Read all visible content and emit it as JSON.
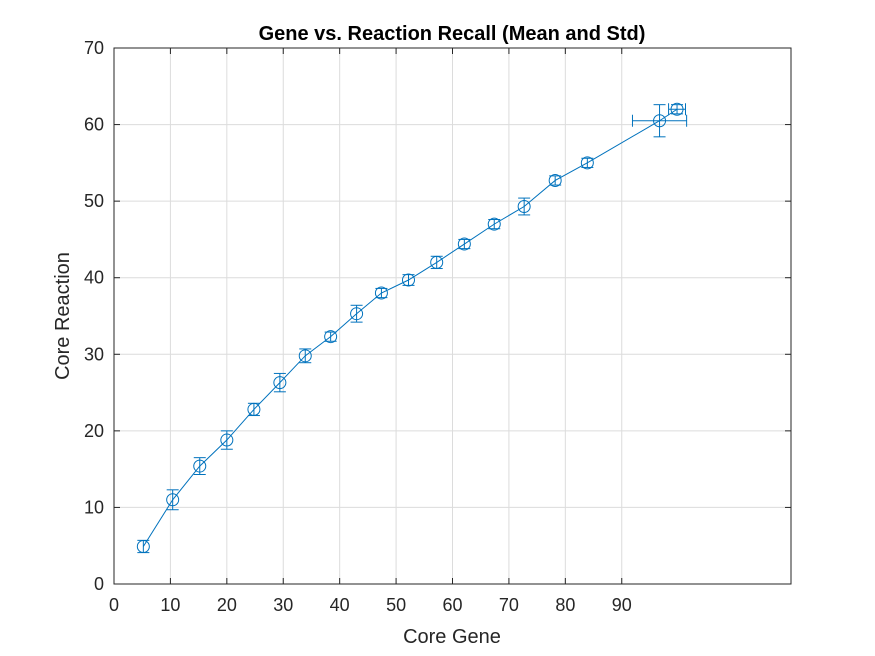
{
  "chart_data": {
    "type": "line",
    "title": "Gene vs. Reaction Recall (Mean and Std)",
    "xlabel": "Core Gene",
    "ylabel": "Core Reaction",
    "xlim": [
      0,
      120
    ],
    "ylim": [
      0,
      70
    ],
    "xticks": [
      0,
      10,
      20,
      30,
      40,
      50,
      60,
      70,
      80,
      90
    ],
    "yticks": [
      0,
      10,
      20,
      30,
      40,
      50,
      60,
      70
    ],
    "grid": true,
    "series": [
      {
        "marker": "circle",
        "color": "#0072bd",
        "x": [
          5.2,
          10.4,
          15.2,
          20.0,
          24.8,
          29.4,
          33.9,
          38.4,
          43.0,
          47.4,
          52.2,
          57.2,
          62.1,
          67.4,
          72.7,
          78.2,
          83.9,
          96.7,
          99.8
        ],
        "y": [
          4.9,
          11.0,
          15.4,
          18.8,
          22.8,
          26.3,
          29.8,
          32.3,
          35.3,
          38.0,
          39.7,
          42.0,
          44.4,
          47.0,
          49.3,
          52.7,
          55.0,
          60.5,
          62.0
        ],
        "y_err": [
          0.8,
          1.3,
          1.1,
          1.2,
          0.8,
          1.2,
          0.9,
          0.6,
          1.1,
          0.6,
          0.7,
          0.8,
          0.6,
          0.6,
          1.1,
          0.6,
          0.6,
          2.1,
          0.6
        ],
        "x_err": [
          0,
          0,
          0,
          0,
          0,
          0,
          0,
          0,
          0,
          0,
          0,
          0,
          0,
          0,
          0,
          0,
          0,
          4.8,
          1.5
        ]
      }
    ]
  }
}
